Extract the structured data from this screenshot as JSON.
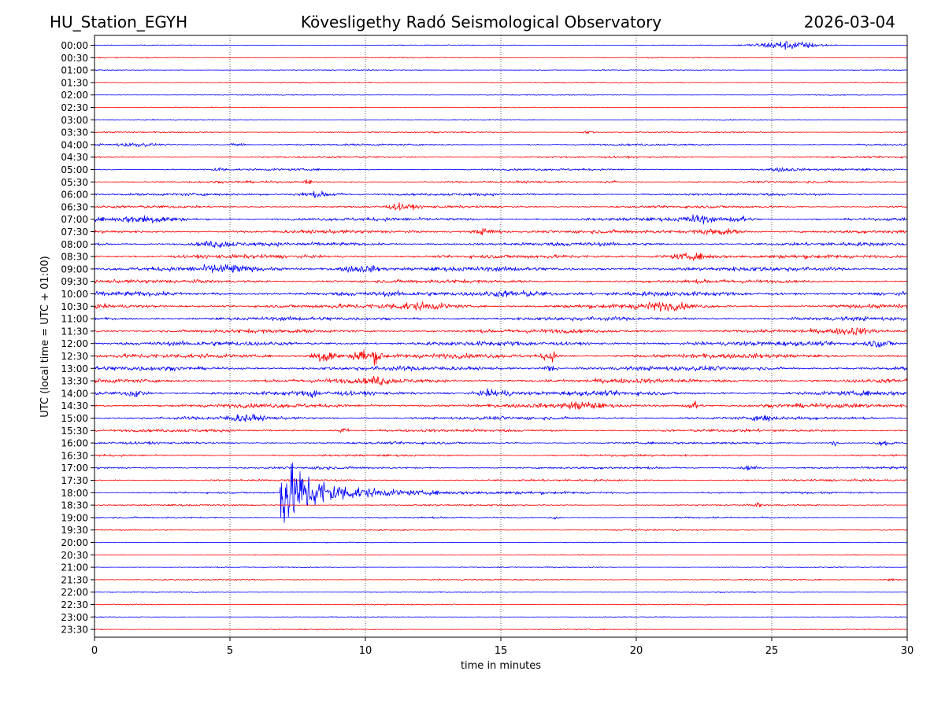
{
  "header": {
    "station": "HU_Station_EGYH",
    "observatory": "Kövesligethy Radó Seismological Observatory",
    "date": "2026-03-04"
  },
  "chart_data": {
    "type": "line",
    "title": "Kövesligethy Radó Seismological Observatory",
    "xlabel": "time in minutes",
    "ylabel": "UTC (local time = UTC + 01:00)",
    "xlim": [
      0,
      30
    ],
    "xticks": [
      0,
      5,
      10,
      15,
      20,
      25,
      30
    ],
    "xtick_labels": [
      "0",
      "5",
      "10",
      "15",
      "20",
      "25",
      "30"
    ],
    "grid": "vertical dotted lines at x ticks",
    "colors": {
      "even_rows": "#0000ff",
      "odd_rows": "#ff0000",
      "grid": "#000000"
    },
    "rows": [
      {
        "label": "00:00",
        "noise": 0.3,
        "events": [
          {
            "t": 25.6,
            "amp": 3.2,
            "dur": 1.8
          }
        ]
      },
      {
        "label": "00:30",
        "noise": 0.35,
        "events": []
      },
      {
        "label": "01:00",
        "noise": 0.3,
        "events": []
      },
      {
        "label": "01:30",
        "noise": 0.35,
        "events": []
      },
      {
        "label": "02:00",
        "noise": 0.3,
        "events": []
      },
      {
        "label": "02:30",
        "noise": 0.3,
        "events": []
      },
      {
        "label": "03:00",
        "noise": 0.35,
        "events": []
      },
      {
        "label": "03:30",
        "noise": 0.45,
        "events": [
          {
            "t": 18.2,
            "amp": 1.0,
            "dur": 0.4
          }
        ]
      },
      {
        "label": "04:00",
        "noise": 0.6,
        "events": [
          {
            "t": 1.5,
            "amp": 1.2,
            "dur": 1.0
          },
          {
            "t": 5.3,
            "amp": 1.3,
            "dur": 0.4
          }
        ]
      },
      {
        "label": "04:30",
        "noise": 0.6,
        "events": []
      },
      {
        "label": "05:00",
        "noise": 0.7,
        "events": [
          {
            "t": 4.6,
            "amp": 1.6,
            "dur": 0.3
          },
          {
            "t": 25.4,
            "amp": 1.2,
            "dur": 0.8
          }
        ]
      },
      {
        "label": "05:30",
        "noise": 0.7,
        "events": [
          {
            "t": 7.9,
            "amp": 1.8,
            "dur": 0.2
          },
          {
            "t": 19.1,
            "amp": 1.3,
            "dur": 0.4
          }
        ]
      },
      {
        "label": "06:00",
        "noise": 0.85,
        "events": [
          {
            "t": 8.3,
            "amp": 1.8,
            "dur": 1.3
          }
        ]
      },
      {
        "label": "06:30",
        "noise": 0.85,
        "events": [
          {
            "t": 11.3,
            "amp": 1.8,
            "dur": 0.7
          }
        ]
      },
      {
        "label": "07:00",
        "noise": 1.15,
        "events": [
          {
            "t": 2.0,
            "amp": 2.2,
            "dur": 1.6
          },
          {
            "t": 22.3,
            "amp": 2.6,
            "dur": 0.8
          },
          {
            "t": 23.8,
            "amp": 2.2,
            "dur": 0.6
          }
        ]
      },
      {
        "label": "07:30",
        "noise": 1.15,
        "events": [
          {
            "t": 14.5,
            "amp": 2.2,
            "dur": 0.8
          },
          {
            "t": 23.0,
            "amp": 2.2,
            "dur": 1.2
          }
        ]
      },
      {
        "label": "08:00",
        "noise": 1.25,
        "events": [
          {
            "t": 4.5,
            "amp": 2.0,
            "dur": 1.0
          }
        ]
      },
      {
        "label": "08:30",
        "noise": 1.25,
        "events": [
          {
            "t": 22.0,
            "amp": 2.0,
            "dur": 1.5
          }
        ]
      },
      {
        "label": "09:00",
        "noise": 1.5,
        "events": [
          {
            "t": 4.8,
            "amp": 2.3,
            "dur": 1.2
          },
          {
            "t": 9.8,
            "amp": 2.4,
            "dur": 1.2
          }
        ]
      },
      {
        "label": "09:30",
        "noise": 1.2,
        "events": []
      },
      {
        "label": "10:00",
        "noise": 1.5,
        "events": [
          {
            "t": 15.5,
            "amp": 2.0,
            "dur": 2.0
          }
        ]
      },
      {
        "label": "10:30",
        "noise": 1.4,
        "events": [
          {
            "t": 12.0,
            "amp": 2.0,
            "dur": 2.0
          },
          {
            "t": 21.0,
            "amp": 2.0,
            "dur": 1.5
          }
        ]
      },
      {
        "label": "11:00",
        "noise": 1.3,
        "events": []
      },
      {
        "label": "11:30",
        "noise": 1.3,
        "events": [
          {
            "t": 28.0,
            "amp": 1.8,
            "dur": 1.0
          }
        ]
      },
      {
        "label": "12:00",
        "noise": 1.5,
        "events": [
          {
            "t": 29.0,
            "amp": 2.3,
            "dur": 0.8
          }
        ]
      },
      {
        "label": "12:30",
        "noise": 1.5,
        "events": [
          {
            "t": 8.5,
            "amp": 5.0,
            "dur": 0.7
          },
          {
            "t": 9.8,
            "amp": 5.2,
            "dur": 0.4
          },
          {
            "t": 10.4,
            "amp": 4.5,
            "dur": 0.4
          },
          {
            "t": 16.8,
            "amp": 4.0,
            "dur": 0.4
          }
        ]
      },
      {
        "label": "13:00",
        "noise": 1.5,
        "events": [
          {
            "t": 16.8,
            "amp": 2.3,
            "dur": 0.4
          }
        ]
      },
      {
        "label": "13:30",
        "noise": 1.5,
        "events": [
          {
            "t": 10.5,
            "amp": 2.2,
            "dur": 0.6
          }
        ]
      },
      {
        "label": "14:00",
        "noise": 1.5,
        "events": [
          {
            "t": 1.5,
            "amp": 2.5,
            "dur": 0.5
          },
          {
            "t": 8.0,
            "amp": 2.5,
            "dur": 0.3
          },
          {
            "t": 14.8,
            "amp": 2.2,
            "dur": 1.0
          }
        ]
      },
      {
        "label": "14:30",
        "noise": 1.4,
        "events": [
          {
            "t": 22.1,
            "amp": 3.5,
            "dur": 0.4
          },
          {
            "t": 18.0,
            "amp": 2.0,
            "dur": 1.0
          }
        ]
      },
      {
        "label": "15:00",
        "noise": 1.1,
        "events": [
          {
            "t": 5.5,
            "amp": 2.0,
            "dur": 1.0
          },
          {
            "t": 24.7,
            "amp": 2.0,
            "dur": 0.5
          }
        ]
      },
      {
        "label": "15:30",
        "noise": 1.0,
        "events": [
          {
            "t": 9.2,
            "amp": 2.0,
            "dur": 0.3
          }
        ]
      },
      {
        "label": "16:00",
        "noise": 0.8,
        "events": [
          {
            "t": 27.3,
            "amp": 2.0,
            "dur": 0.2
          },
          {
            "t": 29.2,
            "amp": 1.8,
            "dur": 0.5
          }
        ]
      },
      {
        "label": "16:30",
        "noise": 0.7,
        "events": []
      },
      {
        "label": "17:00",
        "noise": 0.8,
        "events": [
          {
            "t": 8.4,
            "amp": 1.6,
            "dur": 0.3
          },
          {
            "t": 24.2,
            "amp": 1.5,
            "dur": 0.5
          }
        ]
      },
      {
        "label": "17:30",
        "noise": 0.7,
        "events": []
      },
      {
        "label": "18:00",
        "noise": 0.6,
        "events": [
          {
            "t": 6.85,
            "amp": 28.0,
            "dur": 5.5
          }
        ]
      },
      {
        "label": "18:30",
        "noise": 0.55,
        "events": [
          {
            "t": 24.5,
            "amp": 2.3,
            "dur": 0.15
          }
        ]
      },
      {
        "label": "19:00",
        "noise": 0.5,
        "events": [
          {
            "t": 17.0,
            "amp": 1.2,
            "dur": 0.3
          }
        ]
      },
      {
        "label": "19:30",
        "noise": 0.45,
        "events": [
          {
            "t": 19.7,
            "amp": 1.0,
            "dur": 0.3
          }
        ]
      },
      {
        "label": "20:00",
        "noise": 0.3,
        "events": []
      },
      {
        "label": "20:30",
        "noise": 0.3,
        "events": []
      },
      {
        "label": "21:00",
        "noise": 0.35,
        "events": []
      },
      {
        "label": "21:30",
        "noise": 0.4,
        "events": [
          {
            "t": 29.4,
            "amp": 1.0,
            "dur": 0.5
          }
        ]
      },
      {
        "label": "22:00",
        "noise": 0.35,
        "events": []
      },
      {
        "label": "22:30",
        "noise": 0.35,
        "events": []
      },
      {
        "label": "23:00",
        "noise": 0.3,
        "events": []
      },
      {
        "label": "23:30",
        "noise": 0.35,
        "events": []
      }
    ]
  }
}
